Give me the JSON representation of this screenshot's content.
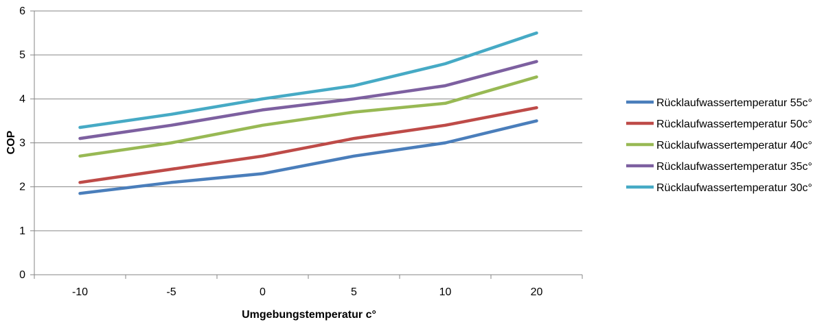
{
  "chart_data": {
    "type": "line",
    "title": "",
    "xlabel": "Umgebungstemperatur  c°",
    "ylabel": "COP",
    "categories": [
      "-10",
      "-5",
      "0",
      "5",
      "10",
      "20"
    ],
    "ylim": [
      0,
      6
    ],
    "yticks": [
      "0",
      "1",
      "2",
      "3",
      "4",
      "5",
      "6"
    ],
    "grid": true,
    "legend_position": "right",
    "series": [
      {
        "name": "Rücklaufwassertemperatur 55c°",
        "color": "#4a7ebb",
        "values": [
          1.85,
          2.1,
          2.3,
          2.7,
          3.0,
          3.5
        ]
      },
      {
        "name": "Rücklaufwassertemperatur 50c°",
        "color": "#be4b48",
        "values": [
          2.1,
          2.4,
          2.7,
          3.1,
          3.4,
          3.8
        ]
      },
      {
        "name": "Rücklaufwassertemperatur 40c°",
        "color": "#98b954",
        "values": [
          2.7,
          3.0,
          3.4,
          3.7,
          3.9,
          4.5
        ]
      },
      {
        "name": "Rücklaufwassertemperatur 35c°",
        "color": "#7d60a0",
        "values": [
          3.1,
          3.4,
          3.75,
          4.0,
          4.3,
          4.85
        ]
      },
      {
        "name": "Rücklaufwassertemperatur 30c°",
        "color": "#46aac5",
        "values": [
          3.35,
          3.65,
          4.0,
          4.3,
          4.8,
          5.5
        ]
      }
    ]
  }
}
